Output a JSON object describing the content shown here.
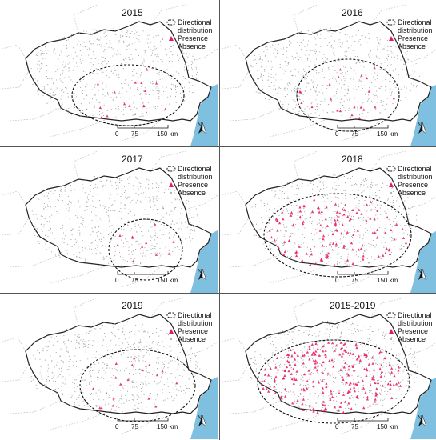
{
  "legend": {
    "directional_label": "Directional distribution",
    "presence_label": "Presence",
    "absence_label": "Absence"
  },
  "scale": {
    "ticks": [
      "0",
      "75",
      "150 km"
    ]
  },
  "north_label": "N",
  "colors": {
    "presence": "#e6195c",
    "absence": "#9a9a9a",
    "sea": "#7fbfe0",
    "border": "#222222",
    "ellipse": "#111111"
  },
  "panels": [
    {
      "year": "2015",
      "ellipse": "west-centered, narrow",
      "presence_density": "low"
    },
    {
      "year": "2016",
      "ellipse": "east-centered",
      "presence_density": "low"
    },
    {
      "year": "2017",
      "ellipse": "south-east, small",
      "presence_density": "low"
    },
    {
      "year": "2018",
      "ellipse": "central, wide",
      "presence_density": "high"
    },
    {
      "year": "2019",
      "ellipse": "south-east",
      "presence_density": "low"
    },
    {
      "year": "2015-2019",
      "ellipse": "central, wide",
      "presence_density": "very high"
    }
  ]
}
